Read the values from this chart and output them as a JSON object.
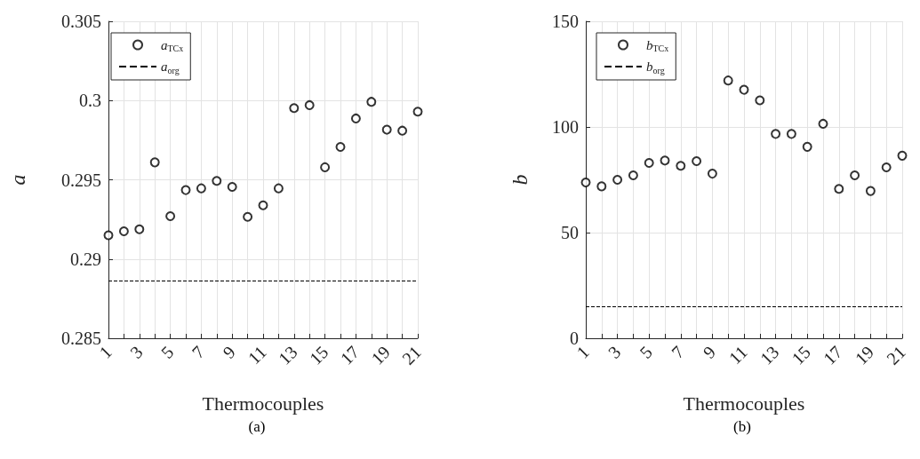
{
  "chart_data": [
    {
      "type": "scatter",
      "xlabel": "Thermocouples",
      "ylabel": "a",
      "x": [
        1,
        2,
        3,
        4,
        5,
        6,
        7,
        8,
        9,
        10,
        11,
        12,
        13,
        14,
        15,
        16,
        17,
        18,
        19,
        20,
        21
      ],
      "series": [
        {
          "name": "a$_{TCx}$",
          "color": "#000000",
          "values": [
            0.2915,
            0.29175,
            0.29188,
            0.2961,
            0.2927,
            0.29435,
            0.29446,
            0.29493,
            0.29455,
            0.29266,
            0.29339,
            0.29446,
            0.29952,
            0.29971,
            0.29579,
            0.29707,
            0.29887,
            0.29992,
            0.29816,
            0.2981,
            0.2993
          ]
        }
      ],
      "xlim": [
        1,
        21
      ],
      "xticks": [
        1,
        {
          "value": 2,
          "label": null
        },
        3,
        {
          "value": 4,
          "label": null
        },
        5,
        {
          "value": 6,
          "label": null
        },
        7,
        {
          "value": 8,
          "label": null
        },
        9,
        {
          "value": 10,
          "label": null
        },
        11,
        {
          "value": 12,
          "label": null
        },
        13,
        {
          "value": 14,
          "label": null
        },
        15,
        {
          "value": 16,
          "label": null
        },
        17,
        {
          "value": 18,
          "label": null
        },
        19,
        {
          "value": 20,
          "label": null
        },
        21
      ],
      "ylim": [
        0.285,
        0.305
      ],
      "yticks": [
        0.285,
        0.29,
        0.295,
        0.3,
        0.305
      ],
      "grid": true,
      "legend": "top left",
      "marker": "circle",
      "ref_lines": [
        {
          "axis": "y",
          "value": 0.28861,
          "label": "a$_{org}$",
          "line_style": "dashed",
          "color": "#000000"
        }
      ],
      "annotations": [
        "(a)"
      ]
    },
    {
      "type": "scatter",
      "xlabel": "Thermocouples",
      "ylabel": "b",
      "x": [
        1,
        2,
        3,
        4,
        5,
        6,
        7,
        8,
        9,
        10,
        11,
        12,
        13,
        14,
        15,
        16,
        17,
        18,
        19,
        20,
        21
      ],
      "series": [
        {
          "name": "b$_{TCx}$",
          "color": "#000000",
          "values": [
            73.7,
            71.9,
            75.0,
            77.1,
            83.0,
            84.1,
            81.6,
            83.8,
            77.9,
            122.0,
            117.6,
            112.6,
            96.7,
            96.7,
            90.6,
            101.5,
            70.7,
            77.1,
            69.7,
            80.9,
            86.4
          ]
        }
      ],
      "xlim": [
        1,
        21
      ],
      "xticks": [
        1,
        {
          "value": 2,
          "label": null
        },
        3,
        {
          "value": 4,
          "label": null
        },
        5,
        {
          "value": 6,
          "label": null
        },
        7,
        {
          "value": 8,
          "label": null
        },
        9,
        {
          "value": 10,
          "label": null
        },
        11,
        {
          "value": 12,
          "label": null
        },
        13,
        {
          "value": 14,
          "label": null
        },
        15,
        {
          "value": 16,
          "label": null
        },
        17,
        {
          "value": 18,
          "label": null
        },
        19,
        {
          "value": 20,
          "label": null
        },
        21
      ],
      "ylim": [
        0,
        150
      ],
      "yticks": [
        0,
        50,
        100,
        150
      ],
      "grid": true,
      "legend": "top left",
      "marker": "circle",
      "ref_lines": [
        {
          "axis": "y",
          "value": 15.0,
          "label": "b$_{org}$",
          "line_style": "dashed",
          "color": "#000000"
        }
      ],
      "annotations": [
        "(b)"
      ]
    }
  ]
}
